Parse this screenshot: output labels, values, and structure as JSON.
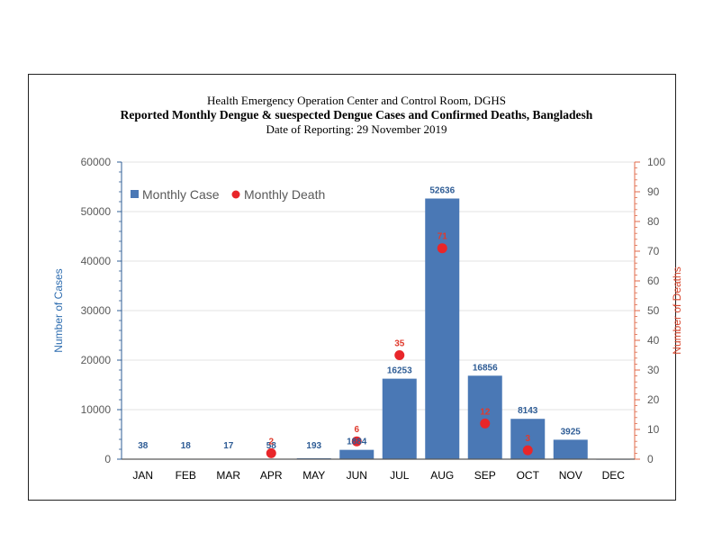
{
  "chart_data": {
    "type": "bar",
    "title": "Reported Monthly Dengue & suespected Dengue Cases and Confirmed Deaths, Bangladesh",
    "supertitle": "Health Emergency Operation Center and Control Room, DGHS",
    "subtitle": "Date of Reporting: 29 November 2019",
    "categories": [
      "JAN",
      "FEB",
      "MAR",
      "APR",
      "MAY",
      "JUN",
      "JUL",
      "AUG",
      "SEP",
      "OCT",
      "NOV",
      "DEC"
    ],
    "series": [
      {
        "name": "Monthly Case",
        "type": "bar",
        "axis": "left",
        "color": "#4a78b5",
        "values": [
          38,
          18,
          17,
          58,
          193,
          1884,
          16253,
          52636,
          16856,
          8143,
          3925,
          0
        ],
        "labels": [
          "38",
          "18",
          "17",
          "58",
          "193",
          "1884",
          "16253",
          "52636",
          "16856",
          "8143",
          "3925",
          ""
        ]
      },
      {
        "name": "Monthly Death",
        "type": "scatter",
        "axis": "right",
        "color": "#e8262a",
        "values": [
          null,
          null,
          null,
          2,
          null,
          6,
          35,
          71,
          12,
          3,
          null,
          null
        ],
        "labels": [
          "",
          "",
          "",
          "2",
          "",
          "6",
          "35",
          "71",
          "12",
          "3",
          "",
          ""
        ]
      }
    ],
    "ylabel": "Number of Cases",
    "y2label": "Number of Deaths",
    "xlabel": "",
    "ylim": [
      0,
      60000
    ],
    "y2lim": [
      0,
      100
    ],
    "yticks": [
      "0",
      "10000",
      "20000",
      "30000",
      "40000",
      "50000",
      "60000"
    ],
    "y2ticks": [
      "0",
      "10",
      "20",
      "30",
      "40",
      "50",
      "60",
      "70",
      "80",
      "90",
      "100"
    ],
    "grid": true,
    "legend_position": "top-left"
  }
}
